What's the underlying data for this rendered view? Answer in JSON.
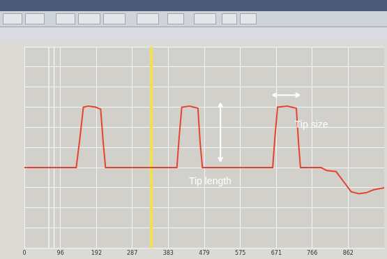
{
  "chart_data": {
    "type": "line",
    "x": [
      0,
      138,
      148,
      157,
      170,
      190,
      203,
      210,
      216,
      406,
      412,
      419,
      440,
      462,
      468,
      474,
      661,
      667,
      674,
      700,
      724,
      730,
      735,
      790,
      805,
      830,
      850,
      870,
      890,
      910,
      930,
      958
    ],
    "series": [
      {
        "color": "#e5432d",
        "line_style": "solid",
        "values": [
          0,
          0,
          1.5,
          3.0,
          3.05,
          3.0,
          2.9,
          1.2,
          0,
          0,
          1.5,
          3.0,
          3.05,
          2.95,
          1.2,
          0,
          0,
          1.5,
          3.0,
          3.05,
          2.95,
          1.2,
          0,
          0,
          -0.15,
          -0.2,
          -0.7,
          -1.2,
          -1.3,
          -1.25,
          -1.1,
          -1.0
        ]
      }
    ],
    "xlim": [
      0,
      958
    ],
    "xticks": [
      0,
      96,
      192,
      287,
      383,
      479,
      575,
      671,
      766,
      862
    ],
    "ylim": [
      -4,
      6
    ],
    "yticks": [
      -4,
      -3,
      -2,
      -1,
      0,
      1,
      2,
      3,
      4,
      5,
      6
    ],
    "grid": true,
    "tick_labels": "x",
    "cursors": [
      {
        "x": 65,
        "color": "#f4f4f4"
      },
      {
        "x": 79,
        "color": "#f4f4f4"
      },
      {
        "x": 338,
        "color": "#f2e24a"
      }
    ],
    "arrows": [
      {
        "x0": 522,
        "y0": 3.2,
        "x1": 522,
        "y1": 0.3
      },
      {
        "x0": 661,
        "y0": 3.6,
        "x1": 733,
        "y1": 3.6
      }
    ],
    "annotations": [
      {
        "text": "Tip length",
        "x": 438,
        "y": -0.7
      },
      {
        "text": "Tip size",
        "x": 720,
        "y": 2.1
      }
    ]
  }
}
